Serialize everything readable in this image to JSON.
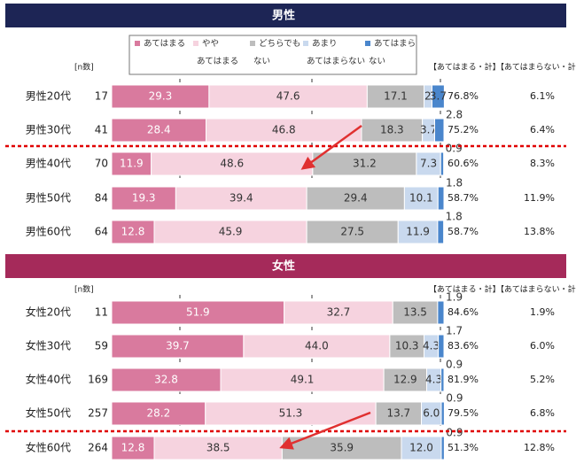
{
  "colors": {
    "male_header": "#1d2555",
    "female_header": "#a52a5a",
    "seg": [
      "#d97a9e",
      "#f6d3df",
      "#bdbdbd",
      "#c9d9ee",
      "#4a86cc"
    ],
    "highlight": "#e00000",
    "arrow": "#e03030"
  },
  "legend_items": [
    {
      "line1": "あてはまる",
      "line2": ""
    },
    {
      "line1": "やや",
      "line2": "あてはまる"
    },
    {
      "line1": "どちらでも",
      "line2": "ない"
    },
    {
      "line1": "あまり",
      "line2": "あてはまらない"
    },
    {
      "line1": "あてはまら",
      "line2": "ない"
    }
  ],
  "chart_data": [
    {
      "type": "bar",
      "stacked": "100%",
      "orientation": "horizontal",
      "title": "男性",
      "n_header": "[n数]",
      "col_headers": [
        "【あてはまる・計】",
        "【あてはまらない・計】"
      ],
      "categories": [
        "男性20代",
        "男性30代",
        "男性40代",
        "男性50代",
        "男性60代"
      ],
      "n": [
        "17",
        "41",
        "70",
        "84",
        "64"
      ],
      "series": [
        {
          "name": "あてはまる",
          "values": [
            29.3,
            28.4,
            11.9,
            19.3,
            12.8
          ]
        },
        {
          "name": "ややあてはまる",
          "values": [
            47.6,
            46.8,
            48.6,
            39.4,
            45.9
          ]
        },
        {
          "name": "どちらでもない",
          "values": [
            17.1,
            18.3,
            31.2,
            29.4,
            27.5
          ]
        },
        {
          "name": "あまりあてはまらない",
          "values": [
            2.4,
            3.7,
            7.3,
            10.1,
            11.9
          ]
        },
        {
          "name": "あてはまらない",
          "values": [
            3.7,
            2.8,
            0.9,
            1.8,
            1.8
          ]
        }
      ],
      "labels": [
        [
          "29.3",
          "47.6",
          "17.1",
          "2.4",
          "3.7"
        ],
        [
          "28.4",
          "46.8",
          "18.3",
          "3.7",
          "2.8"
        ],
        [
          "11.9",
          "48.6",
          "31.2",
          "7.3",
          "0.9"
        ],
        [
          "19.3",
          "39.4",
          "29.4",
          "10.1",
          "1.8"
        ],
        [
          "12.8",
          "45.9",
          "27.5",
          "11.9",
          "1.8"
        ]
      ],
      "agree_total": [
        "76.8%",
        "75.2%",
        "60.6%",
        "58.7%",
        "58.7%"
      ],
      "disagree_total": [
        "6.1%",
        "6.4%",
        "8.3%",
        "11.9%",
        "13.8%"
      ]
    },
    {
      "type": "bar",
      "stacked": "100%",
      "orientation": "horizontal",
      "title": "女性",
      "n_header": "[n数]",
      "col_headers": [
        "【あてはまる・計】",
        "【あてはまらない・計】"
      ],
      "categories": [
        "女性20代",
        "女性30代",
        "女性40代",
        "女性50代",
        "女性60代"
      ],
      "n": [
        "11",
        "59",
        "169",
        "257",
        "264"
      ],
      "series": [
        {
          "name": "あてはまる",
          "values": [
            51.9,
            39.7,
            32.8,
            28.2,
            12.8
          ]
        },
        {
          "name": "ややあてはまる",
          "values": [
            32.7,
            44.0,
            49.1,
            51.3,
            38.5
          ]
        },
        {
          "name": "どちらでもない",
          "values": [
            13.5,
            10.3,
            12.9,
            13.7,
            35.9
          ]
        },
        {
          "name": "あまりあてはまらない",
          "values": [
            0.0,
            4.3,
            4.3,
            6.0,
            12.0
          ]
        },
        {
          "name": "あてはまらない",
          "values": [
            1.9,
            1.7,
            0.9,
            0.9,
            0.9
          ]
        }
      ],
      "labels": [
        [
          "51.9",
          "32.7",
          "13.5",
          "",
          "1.9"
        ],
        [
          "39.7",
          "44.0",
          "10.3",
          "4.3",
          "1.7"
        ],
        [
          "32.8",
          "49.1",
          "12.9",
          "4.3",
          "0.9"
        ],
        [
          "28.2",
          "51.3",
          "13.7",
          "6.0",
          "0.9"
        ],
        [
          "12.8",
          "38.5",
          "35.9",
          "12.0",
          "0.9"
        ]
      ],
      "agree_total": [
        "84.6%",
        "83.6%",
        "81.9%",
        "79.5%",
        "51.3%"
      ],
      "disagree_total": [
        "1.9%",
        "6.0%",
        "5.2%",
        "6.8%",
        "12.8%"
      ]
    }
  ]
}
